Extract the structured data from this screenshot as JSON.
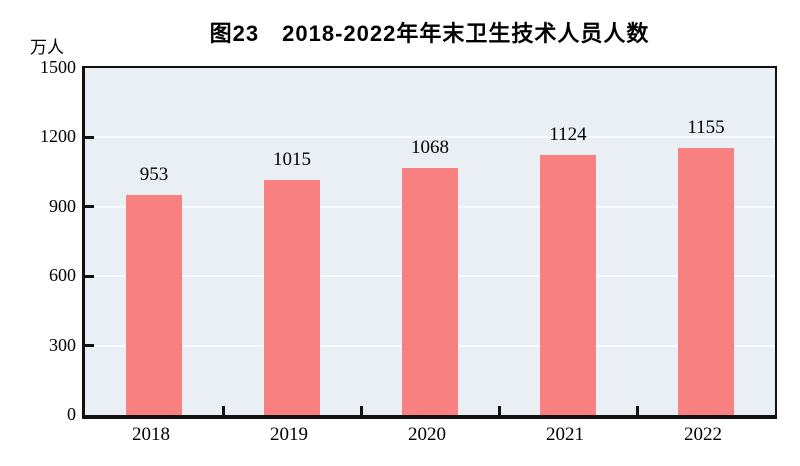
{
  "figure": {
    "title": "图23　2018-2022年年末卫生技术人员人数",
    "unit_label": "万人"
  },
  "chart_data": {
    "type": "bar",
    "title": "图23　2018-2022年年末卫生技术人员人数",
    "categories": [
      "2018",
      "2019",
      "2020",
      "2021",
      "2022"
    ],
    "values": [
      953,
      1015,
      1068,
      1124,
      1155
    ],
    "xlabel": "",
    "ylabel": "万人",
    "ylim": [
      0,
      1500
    ],
    "yticks": [
      0,
      300,
      600,
      900,
      1200,
      1500
    ],
    "grid": true,
    "legend_position": "none",
    "bar_labels_shown": true,
    "colors": {
      "bar": "#f98080",
      "plot_background": "#e9eff5",
      "gridline": "#f7fbfd",
      "axis": "#111111",
      "text": "#000000"
    }
  }
}
